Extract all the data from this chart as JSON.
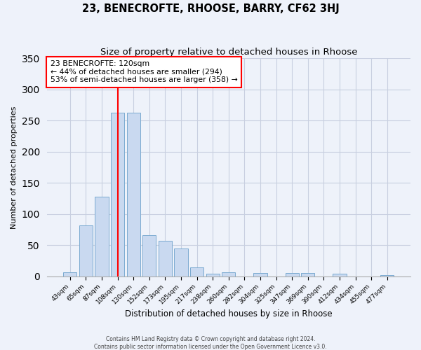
{
  "title": "23, BENECROFTE, RHOOSE, BARRY, CF62 3HJ",
  "subtitle": "Size of property relative to detached houses in Rhoose",
  "xlabel": "Distribution of detached houses by size in Rhoose",
  "ylabel": "Number of detached properties",
  "bar_labels": [
    "43sqm",
    "65sqm",
    "87sqm",
    "108sqm",
    "130sqm",
    "152sqm",
    "173sqm",
    "195sqm",
    "217sqm",
    "238sqm",
    "260sqm",
    "282sqm",
    "304sqm",
    "325sqm",
    "347sqm",
    "369sqm",
    "390sqm",
    "412sqm",
    "434sqm",
    "455sqm",
    "477sqm"
  ],
  "bar_values": [
    6,
    82,
    128,
    263,
    263,
    66,
    57,
    44,
    14,
    4,
    6,
    0,
    5,
    0,
    5,
    5,
    0,
    4,
    0,
    0,
    2
  ],
  "bar_color": "#c9d9f0",
  "bar_edge_color": "#7aaad0",
  "red_line_x": 3.0,
  "annotation_line1": "23 BENECROFTE: 120sqm",
  "annotation_line2": "← 44% of detached houses are smaller (294)",
  "annotation_line3": "53% of semi-detached houses are larger (358) →",
  "ylim": [
    0,
    350
  ],
  "yticks": [
    0,
    50,
    100,
    150,
    200,
    250,
    300,
    350
  ],
  "footnote1": "Contains HM Land Registry data © Crown copyright and database right 2024.",
  "footnote2": "Contains public sector information licensed under the Open Government Licence v3.0.",
  "background_color": "#eef2fa",
  "plot_background": "#eef2fa",
  "grid_color": "#c8cfe0",
  "title_fontsize": 10.5,
  "subtitle_fontsize": 9.5
}
